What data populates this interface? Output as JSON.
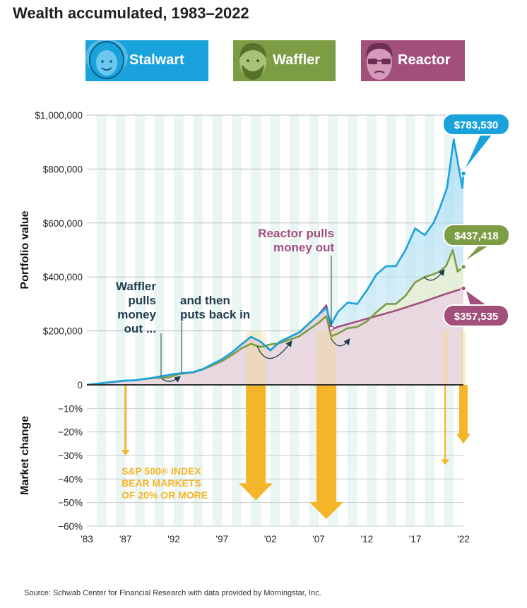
{
  "title": "Wealth accumulated, 1983–2022",
  "source": "Source: Schwab Center for Financial Research with data provided by Morningstar, Inc.",
  "legend": {
    "stalwart": {
      "label": "Stalwart",
      "icon": "smiling-woman-face-icon",
      "color": "#1aa2dc"
    },
    "waffler": {
      "label": "Waffler",
      "icon": "bearded-man-face-icon",
      "color": "#7c9d44"
    },
    "reactor": {
      "label": "Reactor",
      "icon": "man-with-glasses-face-icon",
      "color": "#a24f7c"
    }
  },
  "annotations": {
    "waffler_out": [
      "Waffler",
      "pulls",
      "money",
      "out ..."
    ],
    "waffler_in": [
      "and then",
      "puts back in"
    ],
    "reactor_out": [
      "Reactor pulls",
      "money out"
    ],
    "bear_label": [
      "S&P 500® INDEX",
      "BEAR MARKETS",
      "OF 20% OR MORE"
    ]
  },
  "end_labels": {
    "stalwart": "$783,530",
    "waffler": "$437,418",
    "reactor": "$357,535"
  },
  "chart_data": {
    "type": "line",
    "ylabel_top": "Portfolio value",
    "ylabel_bottom": "Market change",
    "x_ticks": [
      "'83",
      "'87",
      "'92",
      "'97",
      "'02",
      "'07",
      "'12",
      "'17",
      "'22"
    ],
    "x_tick_years": [
      1983,
      1987,
      1992,
      1997,
      2002,
      2007,
      2012,
      2017,
      2022
    ],
    "xlim": [
      1983,
      2022
    ],
    "y_ticks": [
      "$1,000,000",
      "$800,000",
      "$600,000",
      "$400,000",
      "$200,000",
      "0"
    ],
    "y_tick_values": [
      1000000,
      800000,
      600000,
      400000,
      200000,
      0
    ],
    "ylim": [
      0,
      1000000
    ],
    "change_ticks": [
      "−10%",
      "−20%",
      "−30%",
      "−40%",
      "−50%",
      "−60%"
    ],
    "change_tick_values": [
      -10,
      -20,
      -30,
      -40,
      -50,
      -60
    ],
    "series": [
      {
        "name": "Stalwart",
        "color": "#1aa2dc",
        "x": [
          1983,
          1985,
          1987,
          1988,
          1990,
          1992,
          1994,
          1995,
          1997,
          1998,
          1999,
          2000,
          2001,
          2002,
          2003,
          2005,
          2007,
          2007.8,
          2008.3,
          2009,
          2010,
          2011,
          2012,
          2013,
          2014,
          2015,
          2016,
          2017,
          2018,
          2018.9,
          2019.5,
          2020.3,
          2021,
          2021.9,
          2022
        ],
        "y": [
          0,
          8000,
          16000,
          17000,
          27000,
          40000,
          47000,
          58000,
          95000,
          120000,
          150000,
          178000,
          160000,
          128000,
          160000,
          195000,
          260000,
          285000,
          225000,
          270000,
          305000,
          300000,
          350000,
          410000,
          440000,
          440000,
          500000,
          580000,
          555000,
          600000,
          650000,
          730000,
          910000,
          730000,
          783530
        ]
      },
      {
        "name": "Waffler",
        "color": "#7c9d44",
        "x": [
          1983,
          1985,
          1987,
          1988,
          1990,
          1990.8,
          1991.5,
          1992.5,
          1994,
          1995,
          1997,
          1998,
          1999,
          2000,
          2001,
          2002,
          2003,
          2005,
          2007,
          2007.8,
          2008.3,
          2009,
          2010,
          2011,
          2012,
          2013,
          2014,
          2015,
          2016,
          2017,
          2018,
          2018.9,
          2019.5,
          2020.2,
          2020.9,
          2021.4,
          2022
        ],
        "y": [
          0,
          8000,
          16000,
          17000,
          26000,
          26000,
          28000,
          40000,
          46000,
          57000,
          88000,
          110000,
          135000,
          152000,
          140000,
          150000,
          155000,
          180000,
          230000,
          255000,
          180000,
          190000,
          210000,
          215000,
          235000,
          270000,
          300000,
          300000,
          330000,
          380000,
          400000,
          410000,
          420000,
          440000,
          500000,
          420000,
          437418
        ]
      },
      {
        "name": "Reactor",
        "color": "#a24f7c",
        "x": [
          1983,
          1985,
          1987,
          1988,
          1990,
          1992,
          1994,
          1995,
          1997,
          1998,
          1999,
          2000,
          2001,
          2002,
          2003,
          2005,
          2007,
          2007.8,
          2008.3,
          2009,
          2012,
          2015,
          2018,
          2020,
          2022
        ],
        "y": [
          0,
          8000,
          16000,
          17000,
          27000,
          40000,
          47000,
          58000,
          95000,
          120000,
          150000,
          178000,
          160000,
          128000,
          160000,
          195000,
          260000,
          295000,
          205000,
          215000,
          245000,
          275000,
          310000,
          335000,
          357535
        ]
      }
    ],
    "bear_markets": [
      {
        "year": 1987,
        "change": -30
      },
      {
        "year": 2000.5,
        "change": -49
      },
      {
        "year": 2007.8,
        "change": -57
      },
      {
        "year": 2020.1,
        "change": -34
      },
      {
        "year": 2022,
        "change": -25
      }
    ]
  }
}
